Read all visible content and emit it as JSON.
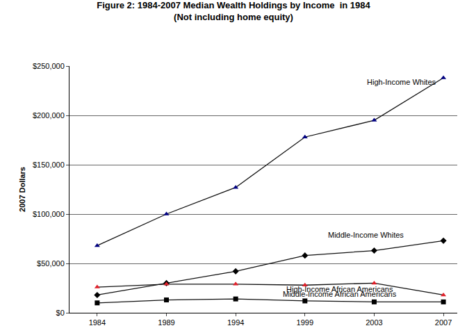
{
  "chart_data": {
    "type": "line",
    "title": "Figure 2: 1984-2007 Median Wealth Holdings by Income  in 1984",
    "subtitle": "(Not including home equity)",
    "y_label": "2007 Dollars",
    "categories": [
      "1984",
      "1989",
      "1994",
      "1999",
      "2003",
      "2007"
    ],
    "series": [
      {
        "name": "High-Income Whites",
        "color": "#000080",
        "marker": "triangle",
        "values": [
          68000,
          100000,
          127000,
          178000,
          195000,
          238000
        ]
      },
      {
        "name": "Middle-Income Whites",
        "color": "#000000",
        "marker": "diamond",
        "values": [
          18000,
          30000,
          42000,
          58000,
          63000,
          73000
        ]
      },
      {
        "name": "High-Income African Americans",
        "color": "#e0202a",
        "marker": "triangle",
        "values": [
          26000,
          29000,
          29000,
          28000,
          30000,
          18000
        ]
      },
      {
        "name": "Middle-Income African Americans",
        "color": "#000000",
        "marker": "square",
        "values": [
          10000,
          13000,
          14000,
          12000,
          11000,
          11000
        ]
      }
    ],
    "ylim": [
      0,
      250000
    ],
    "yticks": [
      {
        "value": 0,
        "label": "$0"
      },
      {
        "value": 50000,
        "label": "$50,000"
      },
      {
        "value": 100000,
        "label": "$100,000"
      },
      {
        "value": 150000,
        "label": "$150,000"
      },
      {
        "value": 200000,
        "label": "$200,000"
      },
      {
        "value": 250000,
        "label": "$250,000"
      }
    ],
    "grid": true
  }
}
